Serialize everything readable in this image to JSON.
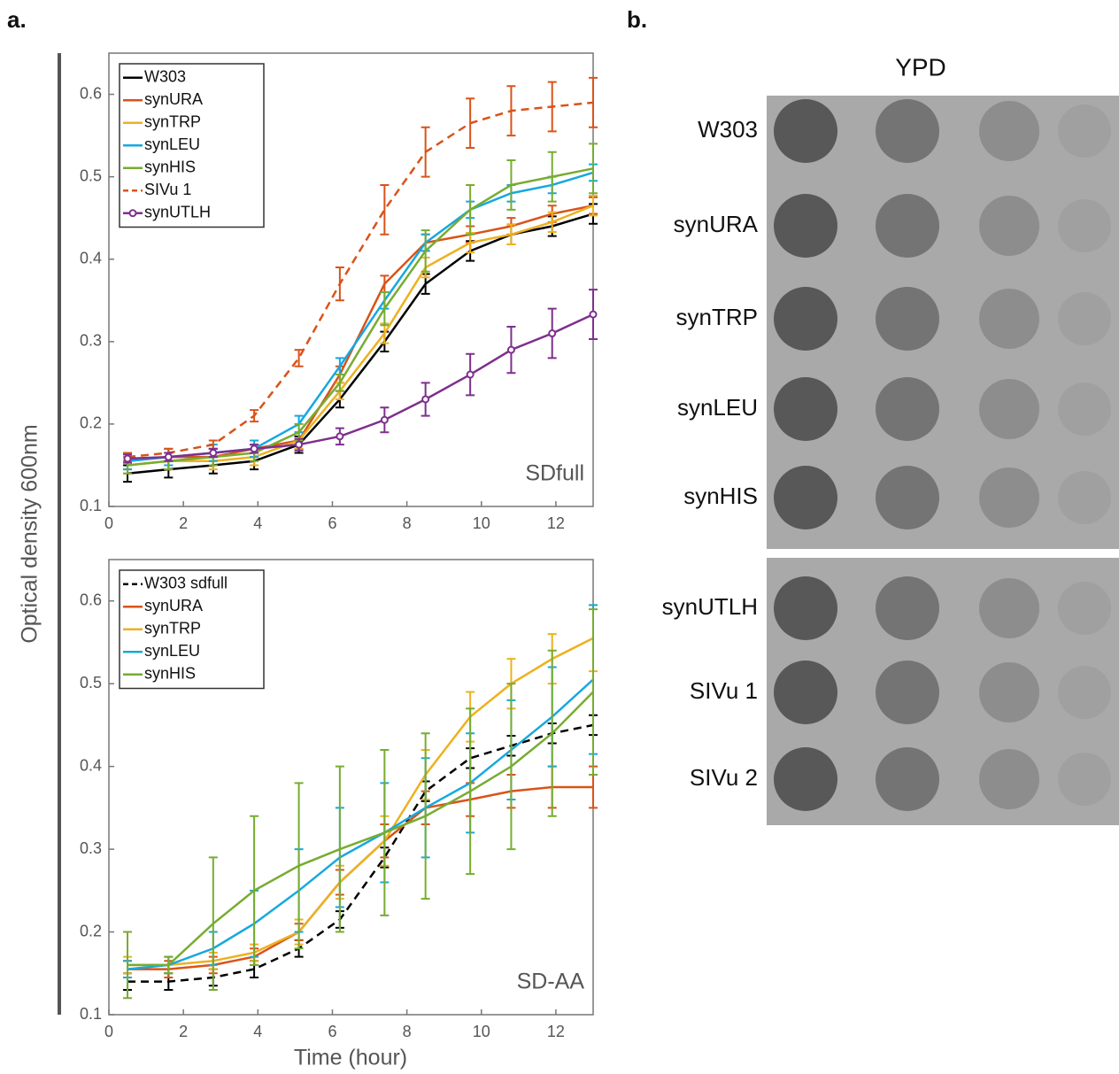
{
  "panel_a_label": "a.",
  "panel_b_label": "b.",
  "chart_data": [
    {
      "type": "line",
      "annotation": "SDfull",
      "ylabel": "Optical density 600nm",
      "xlim": [
        0,
        13
      ],
      "xticks": [
        0,
        2,
        4,
        6,
        8,
        10,
        12
      ],
      "ylim": [
        0.1,
        0.65
      ],
      "yticks": [
        0.1,
        0.2,
        0.3,
        0.4,
        0.5,
        0.6
      ],
      "x": [
        0.5,
        1.6,
        2.8,
        3.9,
        5.1,
        6.2,
        7.4,
        8.5,
        9.7,
        10.8,
        11.9,
        13.0
      ],
      "series": [
        {
          "name": "W303",
          "color": "#000000",
          "values": [
            0.14,
            0.145,
            0.15,
            0.155,
            0.175,
            0.23,
            0.3,
            0.37,
            0.41,
            0.43,
            0.44,
            0.455
          ],
          "errors": [
            0.01,
            0.01,
            0.01,
            0.01,
            0.01,
            0.01,
            0.012,
            0.012,
            0.012,
            0.012,
            0.012,
            0.012
          ]
        },
        {
          "name": "synURA",
          "color": "#d95319",
          "values": [
            0.155,
            0.16,
            0.16,
            0.17,
            0.18,
            0.26,
            0.37,
            0.42,
            0.43,
            0.44,
            0.455,
            0.465
          ],
          "errors": [
            0.01,
            0.01,
            0.01,
            0.01,
            0.01,
            0.01,
            0.01,
            0.01,
            0.01,
            0.01,
            0.01,
            0.01
          ]
        },
        {
          "name": "synTRP",
          "color": "#edb120",
          "values": [
            0.15,
            0.155,
            0.155,
            0.16,
            0.18,
            0.24,
            0.31,
            0.39,
            0.42,
            0.43,
            0.445,
            0.465
          ],
          "errors": [
            0.01,
            0.01,
            0.01,
            0.01,
            0.01,
            0.01,
            0.012,
            0.012,
            0.012,
            0.012,
            0.012,
            0.012
          ]
        },
        {
          "name": "synLEU",
          "color": "#16a8e0",
          "values": [
            0.155,
            0.16,
            0.165,
            0.17,
            0.2,
            0.27,
            0.35,
            0.42,
            0.46,
            0.48,
            0.49,
            0.505
          ],
          "errors": [
            0.01,
            0.01,
            0.01,
            0.01,
            0.01,
            0.01,
            0.01,
            0.01,
            0.01,
            0.01,
            0.01,
            0.01
          ]
        },
        {
          "name": "synHIS",
          "color": "#77ac30",
          "values": [
            0.15,
            0.155,
            0.16,
            0.165,
            0.19,
            0.25,
            0.34,
            0.41,
            0.46,
            0.49,
            0.5,
            0.51
          ],
          "errors": [
            0.01,
            0.01,
            0.01,
            0.01,
            0.01,
            0.01,
            0.02,
            0.025,
            0.03,
            0.03,
            0.03,
            0.03
          ]
        },
        {
          "name": "SIVu 1",
          "color": "#d95319",
          "dash": true,
          "values": [
            0.16,
            0.165,
            0.175,
            0.21,
            0.28,
            0.37,
            0.46,
            0.53,
            0.565,
            0.58,
            0.585,
            0.59
          ],
          "errors": [
            0.005,
            0.005,
            0.005,
            0.007,
            0.01,
            0.02,
            0.03,
            0.03,
            0.03,
            0.03,
            0.03,
            0.03
          ]
        },
        {
          "name": "synUTLH",
          "color": "#7e2f8e",
          "markers": true,
          "values": [
            0.158,
            0.16,
            0.165,
            0.17,
            0.175,
            0.185,
            0.205,
            0.23,
            0.26,
            0.29,
            0.31,
            0.333
          ],
          "errors": [
            0.005,
            0.005,
            0.005,
            0.005,
            0.007,
            0.01,
            0.015,
            0.02,
            0.025,
            0.028,
            0.03,
            0.03
          ]
        }
      ]
    },
    {
      "type": "line",
      "annotation": "SD-AA",
      "xlabel": "Time (hour)",
      "xlim": [
        0,
        13
      ],
      "xticks": [
        0,
        2,
        4,
        6,
        8,
        10,
        12
      ],
      "ylim": [
        0.1,
        0.65
      ],
      "yticks": [
        0.1,
        0.2,
        0.3,
        0.4,
        0.5,
        0.6
      ],
      "x": [
        0.5,
        1.6,
        2.8,
        3.9,
        5.1,
        6.2,
        7.4,
        8.5,
        9.7,
        10.8,
        11.9,
        13.0
      ],
      "series": [
        {
          "name": "W303 sdfull",
          "color": "#000000",
          "dash": true,
          "values": [
            0.14,
            0.14,
            0.145,
            0.155,
            0.18,
            0.215,
            0.29,
            0.37,
            0.41,
            0.425,
            0.44,
            0.45
          ],
          "errors": [
            0.01,
            0.01,
            0.01,
            0.01,
            0.01,
            0.01,
            0.012,
            0.012,
            0.012,
            0.012,
            0.012,
            0.012
          ]
        },
        {
          "name": "synURA",
          "color": "#d95319",
          "values": [
            0.155,
            0.155,
            0.16,
            0.17,
            0.2,
            0.26,
            0.31,
            0.35,
            0.36,
            0.37,
            0.375,
            0.375
          ],
          "errors": [
            0.01,
            0.01,
            0.01,
            0.01,
            0.01,
            0.015,
            0.02,
            0.02,
            0.02,
            0.02,
            0.025,
            0.025
          ]
        },
        {
          "name": "synTRP",
          "color": "#edb120",
          "values": [
            0.16,
            0.16,
            0.165,
            0.175,
            0.2,
            0.26,
            0.31,
            0.39,
            0.46,
            0.5,
            0.53,
            0.555
          ],
          "errors": [
            0.01,
            0.01,
            0.01,
            0.01,
            0.015,
            0.02,
            0.03,
            0.03,
            0.03,
            0.03,
            0.03,
            0.04
          ]
        },
        {
          "name": "synLEU",
          "color": "#16a8e0",
          "values": [
            0.155,
            0.16,
            0.18,
            0.21,
            0.25,
            0.29,
            0.32,
            0.35,
            0.38,
            0.42,
            0.46,
            0.505
          ],
          "errors": [
            0.01,
            0.01,
            0.02,
            0.04,
            0.05,
            0.06,
            0.06,
            0.06,
            0.06,
            0.06,
            0.06,
            0.09
          ]
        },
        {
          "name": "synHIS",
          "color": "#77ac30",
          "values": [
            0.16,
            0.16,
            0.21,
            0.25,
            0.28,
            0.3,
            0.32,
            0.34,
            0.37,
            0.4,
            0.44,
            0.49
          ],
          "errors": [
            0.04,
            0.01,
            0.08,
            0.09,
            0.1,
            0.1,
            0.1,
            0.1,
            0.1,
            0.1,
            0.1,
            0.1
          ]
        }
      ]
    }
  ],
  "spot_assay": {
    "title": "YPD",
    "groups": [
      [
        "W303",
        "synURA",
        "synTRP",
        "synLEU",
        "synHIS"
      ],
      [
        "synUTLH",
        "SIVu 1",
        "SIVu 2"
      ]
    ]
  }
}
